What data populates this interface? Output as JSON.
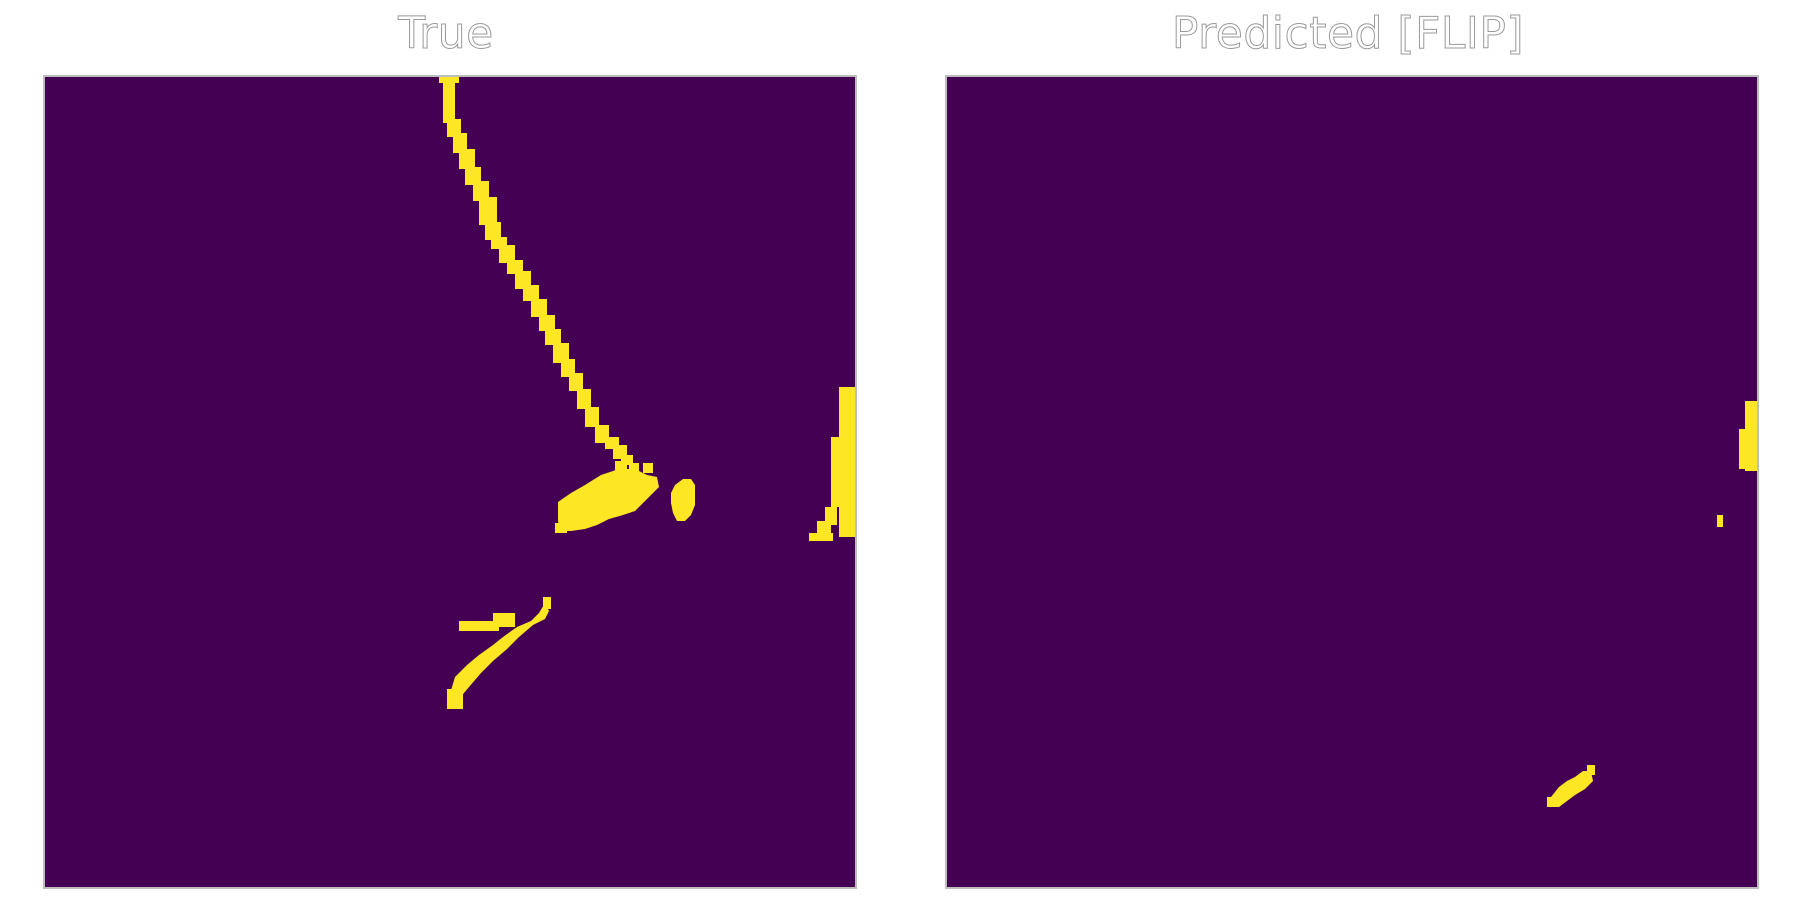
{
  "panels": [
    {
      "title": "True",
      "mask_color": "#fde725",
      "background_color": "#440154"
    },
    {
      "title": "Predicted [FLIP]",
      "mask_color": "#fde725",
      "background_color": "#440154"
    }
  ]
}
